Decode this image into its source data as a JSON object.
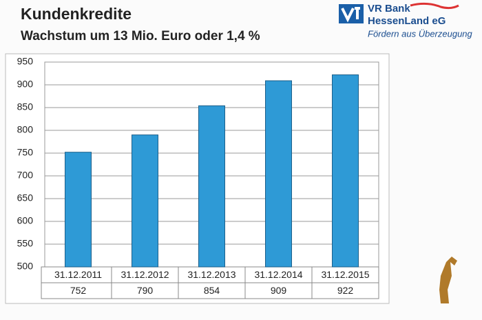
{
  "logo": {
    "line1": "VR Bank",
    "line2": "HessenLand eG",
    "tagline": "Fördern aus Überzeugung"
  },
  "chart_data": {
    "type": "bar",
    "title": "Kundenkredite",
    "subtitle": "Wachstum um 13 Mio. Euro oder 1,4 %",
    "categories": [
      "31.12.2011",
      "31.12.2012",
      "31.12.2013",
      "31.12.2014",
      "31.12.2015"
    ],
    "values": [
      752,
      790,
      854,
      909,
      922
    ],
    "color": "#2e9ad6",
    "ylim": [
      500,
      950
    ],
    "yticks": [
      500,
      550,
      600,
      650,
      700,
      750,
      800,
      850,
      900,
      950
    ],
    "grid": true
  }
}
